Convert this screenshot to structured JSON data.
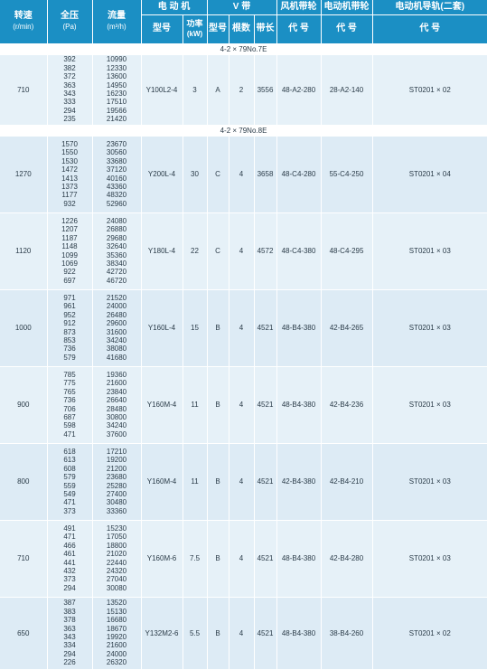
{
  "headers": {
    "speed": "转速",
    "speed_unit": "(r/min)",
    "pressure": "全压",
    "pressure_unit": "(Pa)",
    "flow": "流量",
    "flow_unit": "(m³/h)",
    "motor": "电 动 机",
    "vbelt": "V  带",
    "fan_pulley": "风机带轮",
    "motor_pulley": "电动机带轮",
    "motor_rail": "电动机导轨(二套)",
    "motor_model": "型号",
    "motor_power": "功率",
    "motor_power_unit": "(kW)",
    "belt_type": "型号",
    "belt_count": "根数",
    "belt_length": "带长",
    "fan_pulley_code": "代  号",
    "motor_pulley_code": "代  号",
    "rail_code": "代  号"
  },
  "sections": [
    {
      "title": "4-2 × 79No.7E",
      "rows": [
        {
          "speed": "710",
          "pressures": [
            "392",
            "382",
            "372",
            "363",
            "343",
            "333",
            "294",
            "235"
          ],
          "flows": [
            "10990",
            "12330",
            "13600",
            "14950",
            "16230",
            "17510",
            "19566",
            "21420"
          ],
          "model": "Y100L2-4",
          "power": "3",
          "belt_type": "A",
          "belt_count": "2",
          "belt_length": "3556",
          "fan_pulley": "48-A2-280",
          "motor_pulley": "28-A2-140",
          "rail": "ST0201 × 02"
        }
      ]
    },
    {
      "title": "4-2 × 79No.8E",
      "rows": [
        {
          "speed": "1270",
          "pressures": [
            "1570",
            "1550",
            "1530",
            "1472",
            "1413",
            "1373",
            "1177",
            "932"
          ],
          "flows": [
            "23670",
            "30560",
            "33680",
            "37120",
            "40160",
            "43360",
            "48320",
            "52960"
          ],
          "model": "Y200L-4",
          "power": "30",
          "belt_type": "C",
          "belt_count": "4",
          "belt_length": "3658",
          "fan_pulley": "48-C4-280",
          "motor_pulley": "55-C4-250",
          "rail": "ST0201 × 04"
        },
        {
          "speed": "1120",
          "pressures": [
            "1226",
            "1207",
            "1187",
            "1148",
            "1099",
            "1069",
            "922",
            "697"
          ],
          "flows": [
            "24080",
            "26880",
            "29680",
            "32640",
            "35360",
            "38340",
            "42720",
            "46720"
          ],
          "model": "Y180L-4",
          "power": "22",
          "belt_type": "C",
          "belt_count": "4",
          "belt_length": "4572",
          "fan_pulley": "48-C4-380",
          "motor_pulley": "48-C4-295",
          "rail": "ST0201 × 03"
        },
        {
          "speed": "1000",
          "pressures": [
            "971",
            "961",
            "952",
            "912",
            "873",
            "853",
            "736",
            "579"
          ],
          "flows": [
            "21520",
            "24000",
            "26480",
            "29600",
            "31600",
            "34240",
            "38080",
            "41680"
          ],
          "model": "Y160L-4",
          "power": "15",
          "belt_type": "B",
          "belt_count": "4",
          "belt_length": "4521",
          "fan_pulley": "48-B4-380",
          "motor_pulley": "42-B4-265",
          "rail": "ST0201 × 03"
        },
        {
          "speed": "900",
          "pressures": [
            "785",
            "775",
            "765",
            "736",
            "706",
            "687",
            "598",
            "471"
          ],
          "flows": [
            "19360",
            "21600",
            "23840",
            "26640",
            "28480",
            "30800",
            "34240",
            "37600"
          ],
          "model": "Y160M-4",
          "power": "11",
          "belt_type": "B",
          "belt_count": "4",
          "belt_length": "4521",
          "fan_pulley": "48-B4-380",
          "motor_pulley": "42-B4-236",
          "rail": "ST0201 × 03"
        },
        {
          "speed": "800",
          "pressures": [
            "618",
            "613",
            "608",
            "579",
            "559",
            "549",
            "471",
            "373"
          ],
          "flows": [
            "17210",
            "19200",
            "21200",
            "23680",
            "25280",
            "27400",
            "30480",
            "33360"
          ],
          "model": "Y160M-4",
          "power": "11",
          "belt_type": "B",
          "belt_count": "4",
          "belt_length": "4521",
          "fan_pulley": "42-B4-380",
          "motor_pulley": "42-B4-210",
          "rail": "ST0201 × 03"
        },
        {
          "speed": "710",
          "pressures": [
            "491",
            "471",
            "466",
            "461",
            "441",
            "432",
            "373",
            "294"
          ],
          "flows": [
            "15230",
            "17050",
            "18800",
            "21020",
            "22440",
            "24320",
            "27040",
            "30080"
          ],
          "model": "Y160M-6",
          "power": "7.5",
          "belt_type": "B",
          "belt_count": "4",
          "belt_length": "4521",
          "fan_pulley": "48-B4-380",
          "motor_pulley": "42-B4-280",
          "rail": "ST0201 × 03"
        },
        {
          "speed": "650",
          "pressures": [
            "387",
            "383",
            "378",
            "363",
            "343",
            "334",
            "294",
            "226"
          ],
          "flows": [
            "13520",
            "15130",
            "16680",
            "18670",
            "19920",
            "21600",
            "24000",
            "26320"
          ],
          "model": "Y132M2-6",
          "power": "5.5",
          "belt_type": "B",
          "belt_count": "4",
          "belt_length": "4521",
          "fan_pulley": "48-B4-380",
          "motor_pulley": "38-B4-260",
          "rail": "ST0201 × 02"
        }
      ]
    }
  ]
}
